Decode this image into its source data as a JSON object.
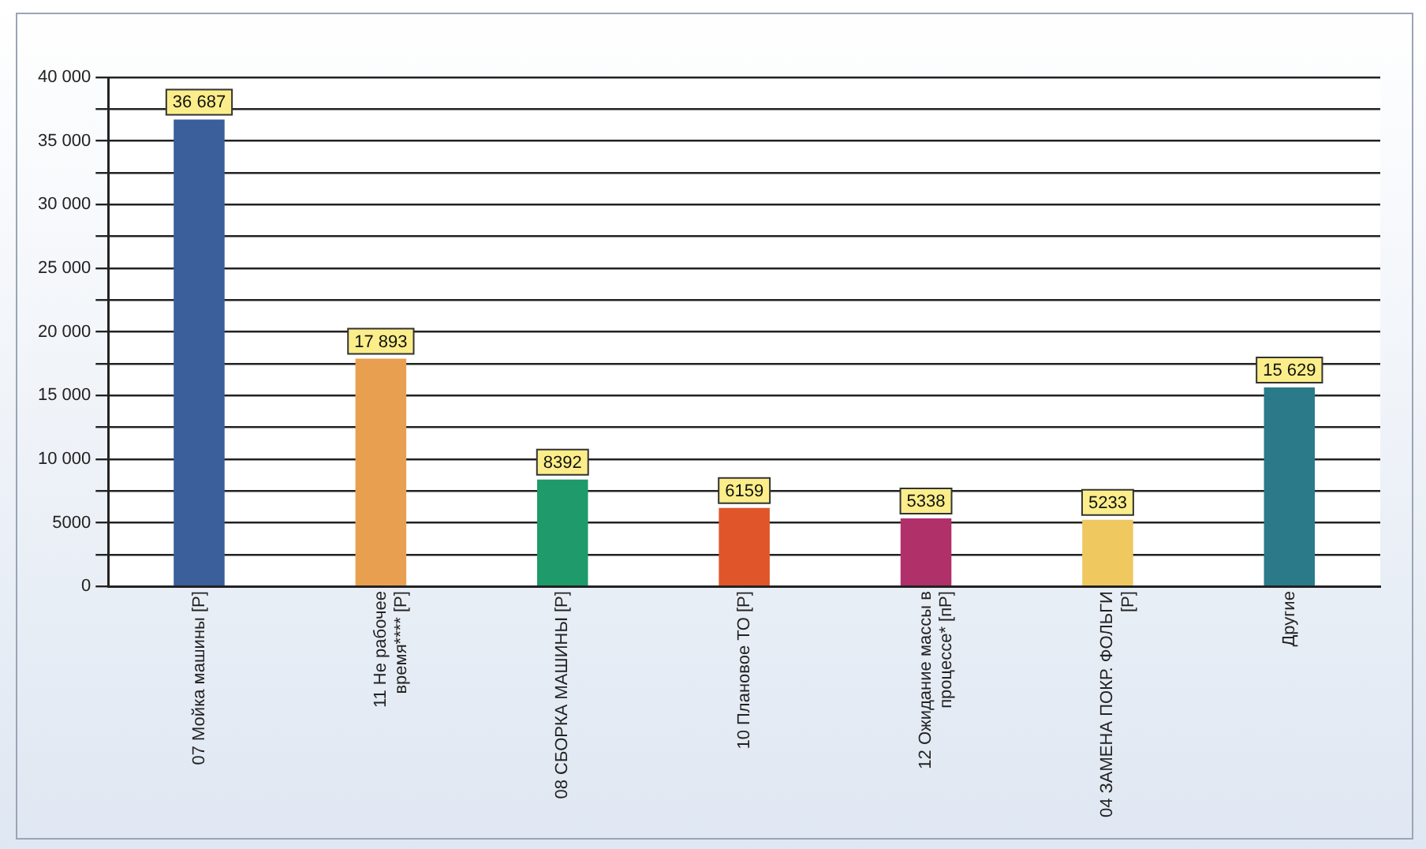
{
  "chart_data": {
    "type": "bar",
    "categories": [
      "07 Мойка машины [Р]",
      "11 Не рабочее время**** [Р]",
      "08 СБОРКА МАШИНЫ [Р]",
      "10 Плановое ТО [Р]",
      "12 Ожидание массы в процессе* [пР]",
      "04 ЗАМЕНА ПОКР. ФОЛЬГИ [Р]",
      "Другие"
    ],
    "values": [
      36687,
      17893,
      8392,
      6159,
      5338,
      5233,
      15629
    ],
    "value_labels": [
      "36 687",
      "17 893",
      "8392",
      "6159",
      "5338",
      "5233",
      "15 629"
    ],
    "colors": [
      "#3a5f9a",
      "#e8a050",
      "#1f9a6a",
      "#e0562a",
      "#b0306a",
      "#f0c860",
      "#2a7a8a"
    ],
    "ylim": [
      0,
      40000
    ],
    "yticks": [
      0,
      {
        "value": 2500,
        "label": null
      },
      5000,
      {
        "value": 7500,
        "label": null
      },
      {
        "value": 10000,
        "label": "10 000"
      },
      {
        "value": 12500,
        "label": null
      },
      {
        "value": 15000,
        "label": "15 000"
      },
      {
        "value": 17500,
        "label": null
      },
      {
        "value": 20000,
        "label": "20 000"
      },
      {
        "value": 22500,
        "label": null
      },
      {
        "value": 25000,
        "label": "25 000"
      },
      {
        "value": 27500,
        "label": null
      },
      {
        "value": 30000,
        "label": "30 000"
      },
      {
        "value": 32500,
        "label": null
      },
      {
        "value": 35000,
        "label": "35 000"
      },
      {
        "value": 37500,
        "label": null
      },
      {
        "value": 40000,
        "label": "40 000"
      }
    ],
    "grid": "y",
    "legend": false
  }
}
